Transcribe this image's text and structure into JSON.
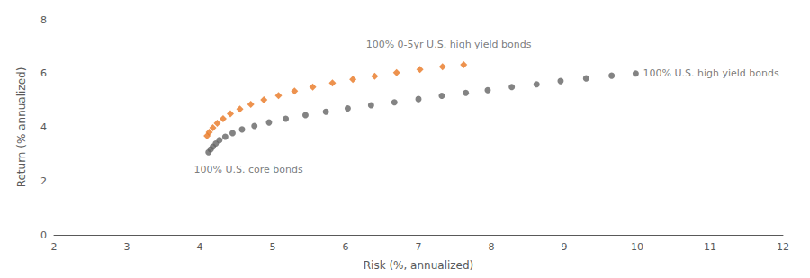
{
  "chart_data": {
    "type": "scatter",
    "xlabel": "Risk (%, annualized)",
    "ylabel": "Return (% annualized)",
    "xlim": [
      2,
      12
    ],
    "ylim": [
      0,
      8
    ],
    "xticks": [
      2,
      3,
      4,
      5,
      6,
      7,
      8,
      9,
      10,
      11,
      12
    ],
    "yticks": [
      0,
      2,
      4,
      6,
      8
    ],
    "grid": false,
    "series": [
      {
        "color": "#646464",
        "marker": "circle",
        "x": [
          4.12,
          4.15,
          4.18,
          4.22,
          4.27,
          4.35,
          4.45,
          4.58,
          4.75,
          4.95,
          5.18,
          5.45,
          5.73,
          6.03,
          6.35,
          6.67,
          7.0,
          7.32,
          7.65,
          7.95,
          8.28,
          8.62,
          8.95,
          9.3,
          9.65,
          9.98
        ],
        "values": [
          3.07,
          3.18,
          3.28,
          3.4,
          3.52,
          3.65,
          3.78,
          3.92,
          4.05,
          4.18,
          4.32,
          4.45,
          4.58,
          4.7,
          4.82,
          4.93,
          5.05,
          5.17,
          5.28,
          5.38,
          5.5,
          5.6,
          5.72,
          5.82,
          5.92,
          6.0
        ]
      },
      {
        "color": "#E87722",
        "marker": "diamond",
        "x": [
          4.1,
          4.13,
          4.18,
          4.24,
          4.32,
          4.42,
          4.55,
          4.7,
          4.88,
          5.08,
          5.3,
          5.55,
          5.82,
          6.1,
          6.4,
          6.7,
          7.02,
          7.33,
          7.62
        ],
        "values": [
          3.68,
          3.82,
          3.98,
          4.15,
          4.32,
          4.5,
          4.68,
          4.85,
          5.02,
          5.18,
          5.35,
          5.5,
          5.65,
          5.78,
          5.9,
          6.03,
          6.15,
          6.25,
          6.33
        ]
      }
    ],
    "annotations": [
      {
        "text": "100% U.S. core bonds",
        "x": 3.92,
        "y": 2.62
      },
      {
        "text": "100% 0-5yr U.S. high yield bonds",
        "x": 6.28,
        "y": 6.88
      },
      {
        "text": "100% U.S. high yield bonds",
        "x": 10.08,
        "y": 6.0
      }
    ]
  }
}
